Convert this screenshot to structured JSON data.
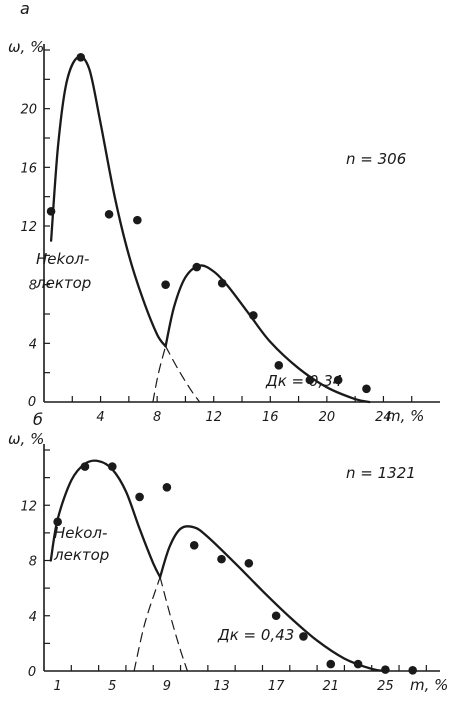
{
  "chart_data": [
    {
      "type": "scatter",
      "panel_label": "а",
      "ylabel": "ω, %",
      "xlabel": "m, %",
      "xlim": [
        0,
        28
      ],
      "ylim": [
        0,
        24
      ],
      "x_ticks": [
        4,
        8,
        12,
        16,
        20,
        24
      ],
      "x_tick_labels": [
        "4",
        "8",
        "12",
        "16",
        "20",
        "24"
      ],
      "y_ticks": [
        4,
        8,
        12,
        16,
        20
      ],
      "y_tick_labels": [
        "4",
        "8",
        "12",
        "16",
        "20"
      ],
      "origin_label": "0",
      "n_label": "n = 306",
      "d_label": "Дк = 0,34",
      "region_label_line1": "Неkол-",
      "region_label_line2": "лектор",
      "points": [
        {
          "x": 0.5,
          "y": 13.0
        },
        {
          "x": 2.6,
          "y": 23.5
        },
        {
          "x": 4.6,
          "y": 12.8
        },
        {
          "x": 6.6,
          "y": 12.4
        },
        {
          "x": 8.6,
          "y": 8.0
        },
        {
          "x": 10.8,
          "y": 9.2
        },
        {
          "x": 12.6,
          "y": 8.1
        },
        {
          "x": 14.8,
          "y": 5.9
        },
        {
          "x": 16.6,
          "y": 2.5
        },
        {
          "x": 18.8,
          "y": 1.5
        },
        {
          "x": 20.8,
          "y": 1.5
        },
        {
          "x": 22.8,
          "y": 0.9
        }
      ],
      "series": [
        {
          "style": "solid",
          "x": [
            0.5,
            1.0,
            1.6,
            2.4,
            3.2,
            4.0,
            5.0,
            6.0,
            7.0,
            8.0,
            8.6
          ],
          "y": [
            11.0,
            17.5,
            21.8,
            23.5,
            22.7,
            19.0,
            14.0,
            10.0,
            7.0,
            4.6,
            3.8
          ]
        },
        {
          "style": "dashed",
          "x": [
            8.6,
            9.5,
            10.4,
            11.0
          ],
          "y": [
            3.8,
            2.2,
            0.8,
            0.0
          ]
        },
        {
          "style": "solid",
          "x": [
            8.6,
            9.2,
            10.0,
            11.0,
            12.0,
            13.0,
            14.5,
            16.0,
            18.0,
            20.0,
            22.0,
            23.0
          ],
          "y": [
            3.8,
            6.5,
            8.5,
            9.3,
            8.9,
            7.9,
            6.0,
            4.1,
            2.3,
            1.0,
            0.2,
            0.0
          ]
        },
        {
          "style": "dashed",
          "x": [
            7.7,
            8.1,
            8.6
          ],
          "y": [
            0.0,
            2.0,
            3.8
          ]
        }
      ]
    },
    {
      "type": "scatter",
      "panel_label": "б",
      "ylabel": "ω, %",
      "xlabel": "m, %",
      "xlim": [
        0,
        29
      ],
      "ylim": [
        0,
        16
      ],
      "x_ticks": [
        1,
        5,
        9,
        13,
        17,
        21,
        25
      ],
      "x_tick_labels": [
        "1",
        "5",
        "9",
        "13",
        "17",
        "21",
        "25"
      ],
      "y_ticks": [
        4,
        8,
        12
      ],
      "y_tick_labels": [
        "4",
        "8",
        "12"
      ],
      "origin_label": "0",
      "n_label": "n = 1321",
      "d_label": "Дк = 0,43",
      "region_label_line1": "Неkол-",
      "region_label_line2": "лектор",
      "points": [
        {
          "x": 1.0,
          "y": 10.8
        },
        {
          "x": 3.0,
          "y": 14.8
        },
        {
          "x": 5.0,
          "y": 14.8
        },
        {
          "x": 7.0,
          "y": 12.6
        },
        {
          "x": 9.0,
          "y": 13.3
        },
        {
          "x": 11.0,
          "y": 9.1
        },
        {
          "x": 13.0,
          "y": 8.1
        },
        {
          "x": 15.0,
          "y": 7.8
        },
        {
          "x": 17.0,
          "y": 4.0
        },
        {
          "x": 19.0,
          "y": 2.5
        },
        {
          "x": 21.0,
          "y": 0.5
        },
        {
          "x": 23.0,
          "y": 0.5
        },
        {
          "x": 25.0,
          "y": 0.1
        },
        {
          "x": 27.0,
          "y": 0.05
        }
      ],
      "series": [
        {
          "style": "solid",
          "x": [
            0.5,
            1.0,
            2.0,
            3.0,
            4.0,
            5.0,
            6.0,
            7.0,
            8.0,
            8.5
          ],
          "y": [
            8.0,
            11.0,
            13.8,
            15.0,
            15.2,
            14.6,
            13.0,
            10.3,
            7.8,
            6.8
          ]
        },
        {
          "style": "dashed",
          "x": [
            8.5,
            9.2,
            9.9,
            10.5
          ],
          "y": [
            6.8,
            4.2,
            1.8,
            0.0
          ]
        },
        {
          "style": "solid",
          "x": [
            8.5,
            9.2,
            10.0,
            11.0,
            12.0,
            14.0,
            16.0,
            18.0,
            20.0,
            22.0,
            24.0,
            25.0
          ],
          "y": [
            6.8,
            9.0,
            10.3,
            10.4,
            9.7,
            7.8,
            5.8,
            3.9,
            2.2,
            0.9,
            0.15,
            0.0
          ]
        },
        {
          "style": "dashed",
          "x": [
            6.6,
            7.4,
            8.5
          ],
          "y": [
            0.0,
            3.5,
            6.8
          ]
        }
      ]
    }
  ]
}
